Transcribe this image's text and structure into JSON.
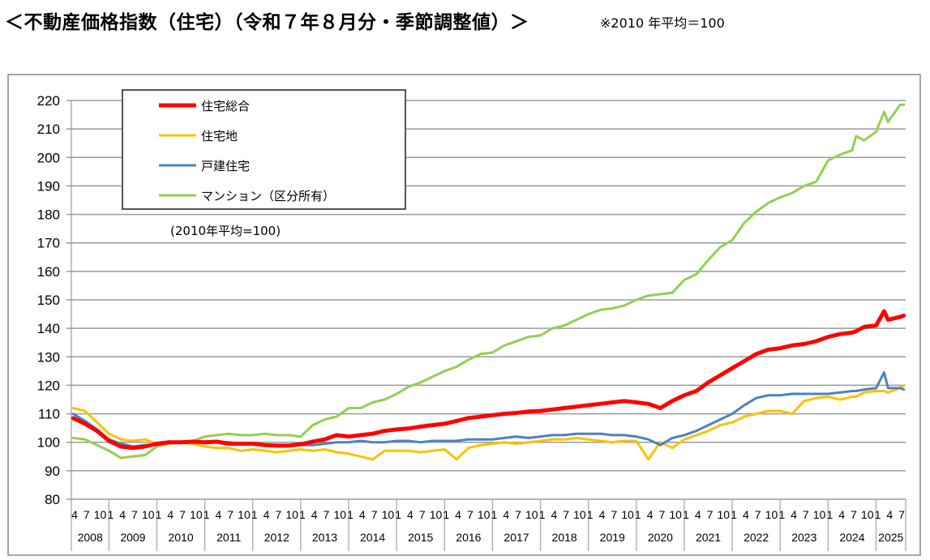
{
  "header": {
    "title": "＜不動産価格指数（住宅）（令和７年８月分・季節調整値）＞",
    "note": "※2010 年平均＝100"
  },
  "chart_data": {
    "type": "line",
    "title": "",
    "annotation": "(2010年平均=100)",
    "xlabel": "",
    "ylabel": "",
    "ylim": [
      80,
      220
    ],
    "yticks": [
      80,
      90,
      100,
      110,
      120,
      130,
      140,
      150,
      160,
      170,
      180,
      190,
      200,
      210,
      220
    ],
    "grid": "horizontal",
    "legend_position": "top-left",
    "month_tick_labels": [
      "1",
      "4",
      "7",
      "10"
    ],
    "years": [
      "2008",
      "2009",
      "2010",
      "2011",
      "2012",
      "2013",
      "2014",
      "2015",
      "2016",
      "2017",
      "2018",
      "2019",
      "2020",
      "2021",
      "2022",
      "2023",
      "2024",
      "2025"
    ],
    "x_range": [
      "2008-04",
      "2025-08"
    ],
    "x": [
      "2008-04",
      "2008-07",
      "2008-10",
      "2009-01",
      "2009-04",
      "2009-07",
      "2009-10",
      "2010-01",
      "2010-04",
      "2010-07",
      "2010-10",
      "2011-01",
      "2011-04",
      "2011-07",
      "2011-10",
      "2012-01",
      "2012-04",
      "2012-07",
      "2012-10",
      "2013-01",
      "2013-04",
      "2013-07",
      "2013-10",
      "2014-01",
      "2014-04",
      "2014-07",
      "2014-10",
      "2015-01",
      "2015-04",
      "2015-07",
      "2015-10",
      "2016-01",
      "2016-04",
      "2016-07",
      "2016-10",
      "2017-01",
      "2017-04",
      "2017-07",
      "2017-10",
      "2018-01",
      "2018-04",
      "2018-07",
      "2018-10",
      "2019-01",
      "2019-04",
      "2019-07",
      "2019-10",
      "2020-01",
      "2020-04",
      "2020-07",
      "2020-10",
      "2021-01",
      "2021-04",
      "2021-07",
      "2021-10",
      "2022-01",
      "2022-04",
      "2022-07",
      "2022-10",
      "2023-01",
      "2023-04",
      "2023-07",
      "2023-10",
      "2024-01",
      "2024-04",
      "2024-07",
      "2024-08",
      "2024-10",
      "2025-01",
      "2025-03",
      "2025-04",
      "2025-07",
      "2025-08"
    ],
    "series": [
      {
        "name": "マンション（区分所有）",
        "color": "#92D050",
        "values": [
          101.5,
          101,
          99,
          97,
          94.5,
          95,
          95.5,
          98.5,
          99.5,
          100,
          100.5,
          102,
          102.5,
          103,
          102.5,
          102.5,
          103,
          102.5,
          102.5,
          102,
          106,
          108,
          109,
          112,
          112,
          114,
          115,
          117,
          119.5,
          121,
          123,
          125,
          126.5,
          129,
          131,
          131.5,
          134,
          135.5,
          137,
          137.5,
          140,
          141,
          143,
          145,
          146.5,
          147,
          148,
          150,
          151.5,
          152,
          152.5,
          157,
          159,
          164,
          168.5,
          171,
          177,
          181,
          184,
          186,
          187.5,
          190,
          191.5,
          199,
          201,
          202.5,
          207.5,
          206,
          209,
          216,
          212.5,
          218.5,
          218.5
        ]
      },
      {
        "name": "住宅地",
        "color": "#FFC000",
        "values": [
          112,
          111,
          107,
          103,
          101,
          100.5,
          101,
          99.5,
          100,
          100,
          99.5,
          98.5,
          98,
          98,
          97,
          97.5,
          97,
          96.5,
          97,
          97.5,
          97,
          97.5,
          96.5,
          96,
          95,
          94,
          97,
          97,
          97,
          96.5,
          97,
          97.5,
          94,
          98,
          99,
          99.5,
          100,
          99.5,
          100,
          100.5,
          101,
          101,
          101.5,
          101,
          100.5,
          100,
          100.5,
          100.5,
          94,
          100,
          98,
          101,
          102.5,
          104,
          106,
          107,
          109,
          110,
          111,
          111,
          110,
          114.5,
          115.5,
          116,
          115,
          116,
          116,
          117.5,
          118,
          118,
          117.5,
          119,
          120
        ]
      },
      {
        "name": "戸建住宅",
        "color": "#4F81BD",
        "values": [
          110,
          107.5,
          104.5,
          101,
          99.5,
          98.5,
          99,
          99,
          100,
          100,
          100,
          100,
          100,
          100,
          99.5,
          99.5,
          99,
          99,
          99,
          99,
          99,
          99.5,
          100,
          100,
          100.5,
          100,
          100,
          100.5,
          100.5,
          100,
          100.5,
          100.5,
          100.5,
          101,
          101,
          101,
          101.5,
          102,
          101.5,
          102,
          102.5,
          102.5,
          103,
          103,
          103,
          102.5,
          102.5,
          102,
          101,
          99,
          101.5,
          102.5,
          104,
          106,
          108,
          110,
          113,
          115.5,
          116.5,
          116.5,
          117,
          117,
          117,
          117,
          117.5,
          118,
          118,
          118.5,
          119,
          124.5,
          119,
          119,
          118.5
        ]
      },
      {
        "name": "住宅総合",
        "color": "#FF0000",
        "values": [
          108.5,
          106.5,
          104,
          100.5,
          98.5,
          98,
          98.5,
          99.5,
          100,
          100,
          100.2,
          100,
          100.2,
          99.5,
          99.5,
          99.5,
          99,
          98.8,
          98.8,
          99.3,
          100.2,
          101,
          102.5,
          102,
          102.5,
          103,
          104,
          104.5,
          104.8,
          105.5,
          106,
          106.5,
          107.5,
          108.5,
          109,
          109.5,
          110,
          110.3,
          110.8,
          111,
          111.5,
          112,
          112.5,
          113,
          113.5,
          114,
          114.5,
          114,
          113.5,
          112,
          114.5,
          116.5,
          118,
          121,
          123.5,
          126,
          128.5,
          131,
          132.5,
          133,
          134,
          134.5,
          135.5,
          137,
          138,
          138.5,
          139,
          140.5,
          141,
          146,
          143,
          144,
          144.5
        ]
      }
    ],
    "legend_order": [
      "住宅総合",
      "住宅地",
      "戸建住宅",
      "マンション（区分所有）"
    ]
  }
}
